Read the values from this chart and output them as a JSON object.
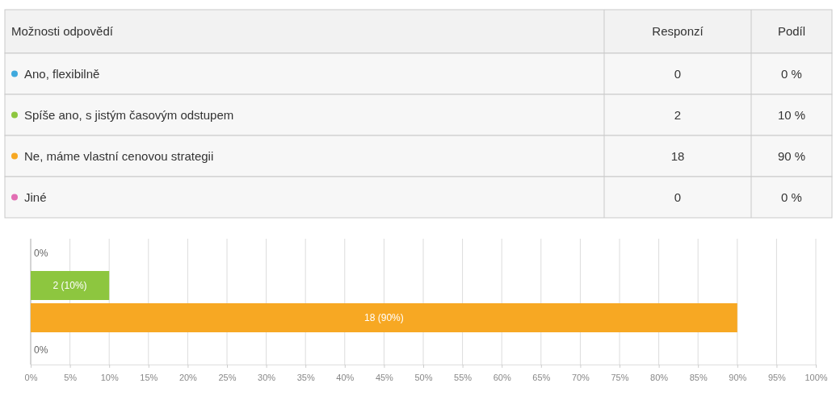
{
  "chart_data": {
    "type": "bar",
    "orientation": "horizontal",
    "categories": [
      null,
      null,
      null,
      null
    ],
    "values": [
      0,
      10,
      90,
      0
    ],
    "colors": [
      "#3fa9dd",
      "#8dc63f",
      "#f7a823",
      "#e26eb3"
    ],
    "value_labels": [
      "0%",
      "2 (10%)",
      "18 (90%)",
      "0%"
    ],
    "xlim": [
      0,
      100
    ],
    "xticks": [
      {
        "value": 0,
        "label": "0%"
      },
      {
        "value": 5,
        "label": "5%"
      },
      {
        "value": 10,
        "label": "10%"
      },
      {
        "value": 15,
        "label": "15%"
      },
      {
        "value": 20,
        "label": "20%"
      },
      {
        "value": 25,
        "label": "25%"
      },
      {
        "value": 30,
        "label": "30%"
      },
      {
        "value": 35,
        "label": "35%"
      },
      {
        "value": 40,
        "label": "40%"
      },
      {
        "value": 45,
        "label": "45%"
      },
      {
        "value": 50,
        "label": "50%"
      },
      {
        "value": 55,
        "label": "55%"
      },
      {
        "value": 60,
        "label": "60%"
      },
      {
        "value": 65,
        "label": "65%"
      },
      {
        "value": 70,
        "label": "70%"
      },
      {
        "value": 75,
        "label": "75%"
      },
      {
        "value": 80,
        "label": "80%"
      },
      {
        "value": 85,
        "label": "85%"
      },
      {
        "value": 90,
        "label": "90%"
      },
      {
        "value": 95,
        "label": "95%"
      },
      {
        "value": 100,
        "label": "100%"
      }
    ],
    "grid": "x",
    "annotations": [
      "Možnosti odpovědí",
      "Responzí",
      "Podíl",
      "Ano, flexibilně",
      "0",
      "0 %",
      "Spíše ano, s jistým časovým odstupem",
      "2",
      "10 %",
      "Ne, máme vlastní cenovou strategii",
      "18",
      "90 %",
      "Jiné",
      "0",
      "0 %"
    ]
  }
}
